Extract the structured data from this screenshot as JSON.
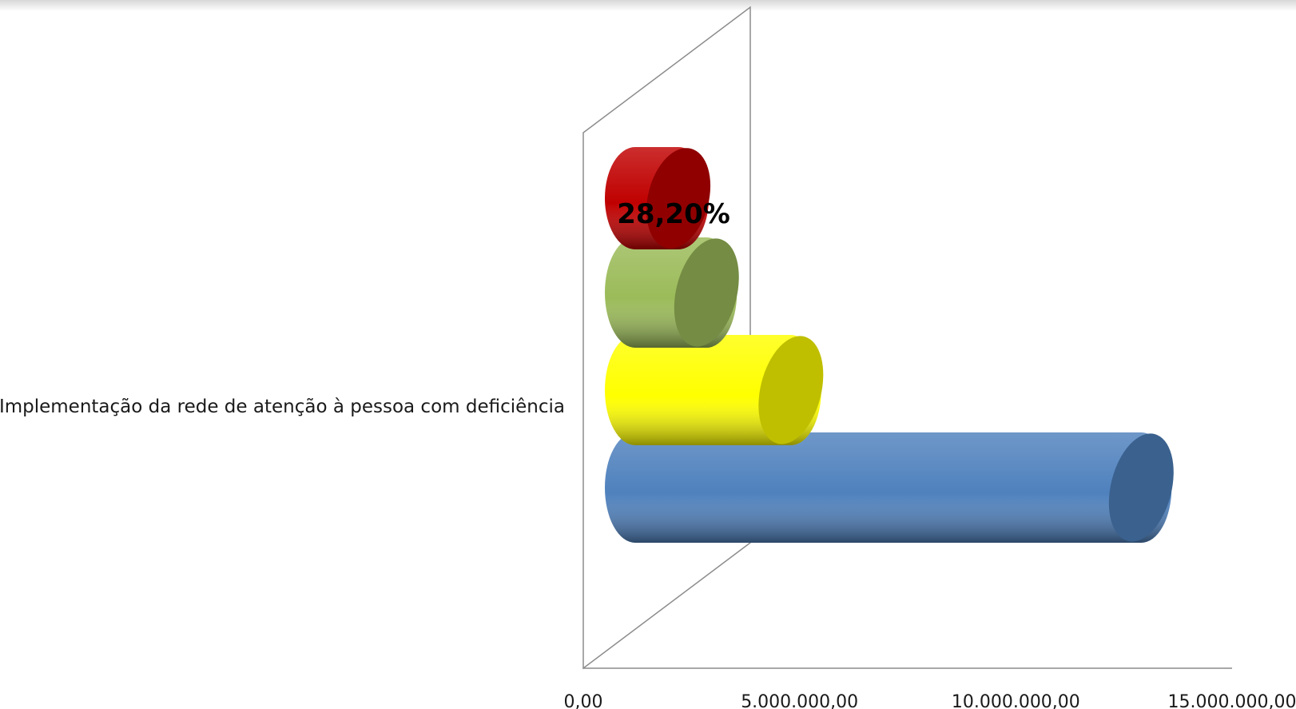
{
  "chart_data": {
    "type": "bar",
    "orientation": "horizontal",
    "style": "3d-cylinder",
    "categories": [
      "Implementação da rede de atenção à pessoa com deficiência"
    ],
    "series": [
      {
        "values": [
          12900000
        ],
        "color": "#4f81bd"
      },
      {
        "values": [
          4800000
        ],
        "color": "#ffff00"
      },
      {
        "values": [
          2850000
        ],
        "color": "#9bbb59"
      },
      {
        "values": [
          2200000
        ],
        "color": "#c00000"
      }
    ],
    "data_labels": [
      {
        "series_index": 3,
        "text": "28,20%"
      }
    ],
    "xlim": [
      0,
      15000000
    ],
    "x_ticks": [
      "0,00",
      "5.000.000,00",
      "10.000.000,00",
      "15.000.000,00"
    ],
    "grid": false,
    "legend": "none"
  }
}
